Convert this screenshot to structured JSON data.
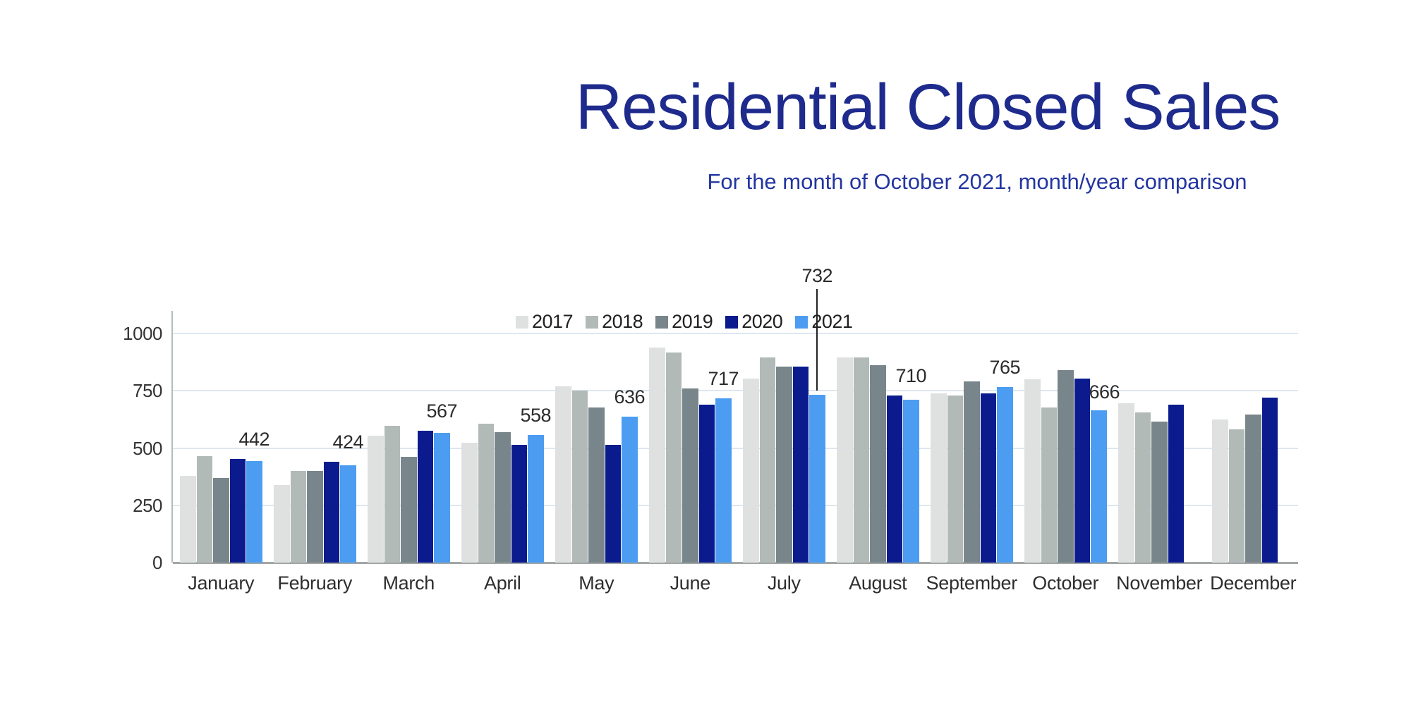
{
  "chart_data": {
    "type": "bar",
    "title": "Residential Closed Sales",
    "subtitle": "For the month of October 2021, month/year comparison",
    "categories": [
      "January",
      "February",
      "March",
      "April",
      "May",
      "June",
      "July",
      "August",
      "September",
      "October",
      "November",
      "December"
    ],
    "series": [
      {
        "name": "2017",
        "color": "#dee1e0",
        "values": [
          380,
          338,
          553,
          523,
          770,
          937,
          803,
          896,
          737,
          800,
          696,
          626
        ]
      },
      {
        "name": "2018",
        "color": "#b2bab8",
        "values": [
          465,
          401,
          598,
          605,
          750,
          917,
          894,
          894,
          729,
          677,
          655,
          583
        ]
      },
      {
        "name": "2019",
        "color": "#78868b",
        "values": [
          368,
          400,
          461,
          568,
          678,
          760,
          854,
          863,
          791,
          841,
          614,
          646
        ]
      },
      {
        "name": "2020",
        "color": "#0b1b8e",
        "values": [
          452,
          440,
          576,
          513,
          513,
          688,
          856,
          729,
          739,
          803,
          688,
          719
        ]
      },
      {
        "name": "2021",
        "color": "#4c9df2",
        "values": [
          442,
          424,
          567,
          558,
          636,
          717,
          732,
          710,
          765,
          666,
          null,
          null
        ]
      }
    ],
    "data_labels": {
      "series": "2021",
      "values": [
        442,
        424,
        567,
        558,
        636,
        717,
        732,
        710,
        765,
        666,
        null,
        null
      ]
    },
    "ylim": [
      0,
      1000
    ],
    "yticks": [
      0,
      250,
      500,
      750,
      1000
    ],
    "legend_position": "top-center",
    "grid": "horizontal"
  },
  "colors": {
    "title": "#1e2b8d",
    "subtitle": "#2335a0",
    "axis_text": "#333333",
    "gridline": "#dde7f1",
    "baseline": "#a2a7a6",
    "axis_line": "#b6bbbb",
    "value_label_text": "#2b2b2b",
    "leader_line": "#222222"
  }
}
